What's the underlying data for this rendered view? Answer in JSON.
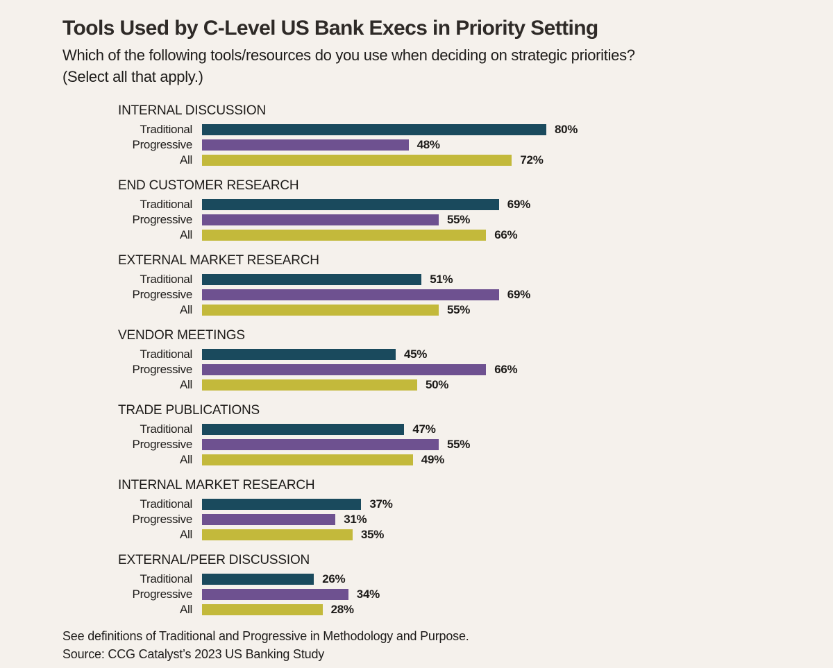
{
  "title": "Tools Used by C-Level US Bank Execs in Priority Setting",
  "subtitle": "Which of the following tools/resources do you use when deciding on strategic priorities?\n(Select all that apply.)",
  "footer": {
    "note": "See definitions of Traditional and Progressive in Methodology and Purpose.",
    "source": "Source: CCG Catalyst’s 2023 US Banking Study"
  },
  "colors": {
    "background": "#f5f1ec",
    "title_text": "#2e2a27",
    "body_text": "#1d1b19",
    "traditional": "#1a4a5d",
    "progressive": "#6e5190",
    "all": "#c3b93b"
  },
  "chart_data": {
    "type": "bar",
    "orientation": "horizontal",
    "unit": "%",
    "xlim": [
      0,
      100
    ],
    "grid": false,
    "legend": "inline-row-labels",
    "series": [
      {
        "name": "Traditional",
        "color": "#1a4a5d"
      },
      {
        "name": "Progressive",
        "color": "#6e5190"
      },
      {
        "name": "All",
        "color": "#c3b93b"
      }
    ],
    "groups": [
      {
        "label": "INTERNAL DISCUSSION",
        "values": [
          80,
          48,
          72
        ]
      },
      {
        "label": "END CUSTOMER RESEARCH",
        "values": [
          69,
          55,
          66
        ]
      },
      {
        "label": "EXTERNAL MARKET RESEARCH",
        "values": [
          51,
          69,
          55
        ]
      },
      {
        "label": "VENDOR MEETINGS",
        "values": [
          45,
          66,
          50
        ]
      },
      {
        "label": "TRADE PUBLICATIONS",
        "values": [
          47,
          55,
          49
        ]
      },
      {
        "label": "INTERNAL MARKET RESEARCH",
        "values": [
          37,
          31,
          35
        ]
      },
      {
        "label": "EXTERNAL/PEER DISCUSSION",
        "values": [
          26,
          34,
          28
        ]
      }
    ]
  }
}
